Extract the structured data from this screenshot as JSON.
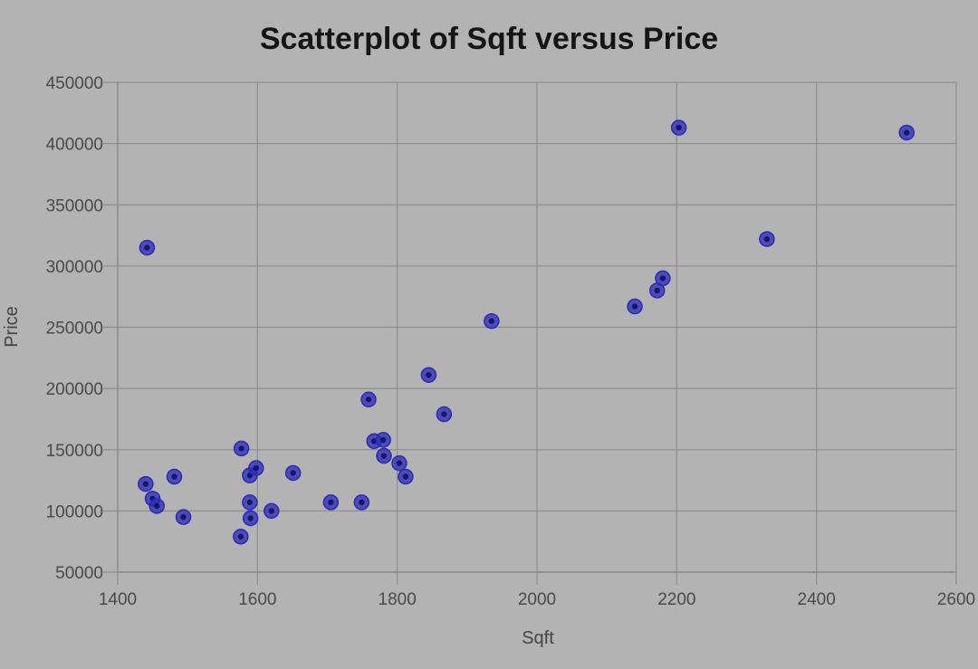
{
  "chart_data": {
    "type": "scatter",
    "title": "Scatterplot of Sqft versus Price",
    "xlabel": "Sqft",
    "ylabel": "Price",
    "xlim": [
      1400,
      2600
    ],
    "ylim": [
      50000,
      450000
    ],
    "x_ticks": [
      1400,
      1600,
      1800,
      2000,
      2200,
      2400,
      2600
    ],
    "y_ticks": [
      50000,
      100000,
      150000,
      200000,
      250000,
      300000,
      350000,
      400000,
      450000
    ],
    "grid": true,
    "point_color": "#2a2ab5",
    "background_color": "#b3b3b3",
    "points": [
      {
        "x": 1442,
        "y": 315000
      },
      {
        "x": 1440,
        "y": 122000
      },
      {
        "x": 1450,
        "y": 110000
      },
      {
        "x": 1456,
        "y": 104000
      },
      {
        "x": 1481,
        "y": 128000
      },
      {
        "x": 1494,
        "y": 95000
      },
      {
        "x": 1576,
        "y": 79000
      },
      {
        "x": 1577,
        "y": 151000
      },
      {
        "x": 1589,
        "y": 129000
      },
      {
        "x": 1589,
        "y": 107000
      },
      {
        "x": 1590,
        "y": 94000
      },
      {
        "x": 1598,
        "y": 135000
      },
      {
        "x": 1620,
        "y": 100000
      },
      {
        "x": 1651,
        "y": 131000
      },
      {
        "x": 1705,
        "y": 107000
      },
      {
        "x": 1749,
        "y": 107000
      },
      {
        "x": 1759,
        "y": 191000
      },
      {
        "x": 1767,
        "y": 157000
      },
      {
        "x": 1780,
        "y": 158000
      },
      {
        "x": 1781,
        "y": 145000
      },
      {
        "x": 1803,
        "y": 139000
      },
      {
        "x": 1812,
        "y": 128000
      },
      {
        "x": 1845,
        "y": 211000
      },
      {
        "x": 1867,
        "y": 179000
      },
      {
        "x": 1935,
        "y": 255000
      },
      {
        "x": 2140,
        "y": 267000
      },
      {
        "x": 2172,
        "y": 280000
      },
      {
        "x": 2180,
        "y": 290000
      },
      {
        "x": 2203,
        "y": 413000
      },
      {
        "x": 2329,
        "y": 322000
      },
      {
        "x": 2529,
        "y": 409000
      }
    ]
  }
}
